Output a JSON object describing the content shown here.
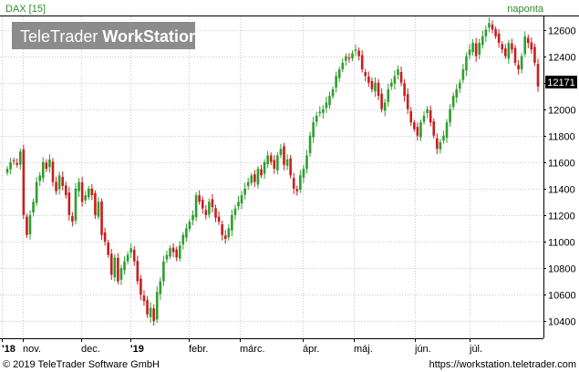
{
  "header": {
    "instrument": "DAX [15]",
    "interval": "naponta"
  },
  "watermark": {
    "text_light": "TeleTrader ",
    "text_bold": "WorkStation"
  },
  "footer": {
    "copyright": "© 2019 TeleTrader Software GmbH",
    "url": "https://workstation.teletrader.com"
  },
  "colors": {
    "up": "#2e9e2e",
    "down": "#c81e1e",
    "grid": "#c8c8c8",
    "label_green": "#2e8b2e",
    "price_box": "#000000"
  },
  "chart_data": {
    "type": "candlestick",
    "title": "DAX [15]",
    "ylim": [
      10270,
      12700
    ],
    "yticks": [
      10400,
      10600,
      10800,
      11000,
      11200,
      11400,
      11600,
      11800,
      12000,
      12200,
      12400,
      12600
    ],
    "xticks": [
      "'18",
      "nov.",
      "dec.",
      "'19",
      "febr.",
      "márc.",
      "ápr.",
      "máj.",
      "jún.",
      "júl."
    ],
    "last_value": "12171",
    "close": [
      11550,
      11600,
      11610,
      11580,
      11680,
      11200,
      11050,
      11200,
      11300,
      11450,
      11500,
      11600,
      11550,
      11620,
      11450,
      11380,
      11500,
      11420,
      11350,
      11200,
      11150,
      11400,
      11450,
      11300,
      11350,
      11400,
      11350,
      11200,
      11300,
      11050,
      11000,
      10900,
      10750,
      10880,
      10700,
      10800,
      10850,
      10900,
      10950,
      10850,
      10700,
      10600,
      10550,
      10450,
      10500,
      10400,
      10620,
      10700,
      10850,
      10900,
      10950,
      10920,
      10880,
      10970,
      11050,
      11100,
      11150,
      11200,
      11350,
      11300,
      11250,
      11200,
      11300,
      11260,
      11180,
      11150,
      11050,
      11020,
      11100,
      11200,
      11250,
      11300,
      11350,
      11400,
      11450,
      11500,
      11450,
      11550,
      11500,
      11600,
      11650,
      11600,
      11550,
      11650,
      11700,
      11580,
      11620,
      11500,
      11400,
      11380,
      11500,
      11550,
      11650,
      11800,
      11900,
      11950,
      11980,
      12000,
      12050,
      12100,
      12150,
      12250,
      12300,
      12350,
      12400,
      12380,
      12420,
      12450,
      12400,
      12300,
      12250,
      12200,
      12150,
      12200,
      12100,
      12000,
      12050,
      12150,
      12200,
      12250,
      12300,
      12200,
      12100,
      12000,
      11900,
      11850,
      11800,
      11900,
      11950,
      12000,
      11900,
      11800,
      11700,
      11750,
      11800,
      11900,
      12000,
      12100,
      12150,
      12200,
      12300,
      12400,
      12450,
      12500,
      12400,
      12500,
      12550,
      12600,
      12650,
      12600,
      12550,
      12500,
      12450,
      12400,
      12500,
      12450,
      12350,
      12300,
      12400,
      12550,
      12500,
      12450,
      12350,
      12171
    ]
  }
}
